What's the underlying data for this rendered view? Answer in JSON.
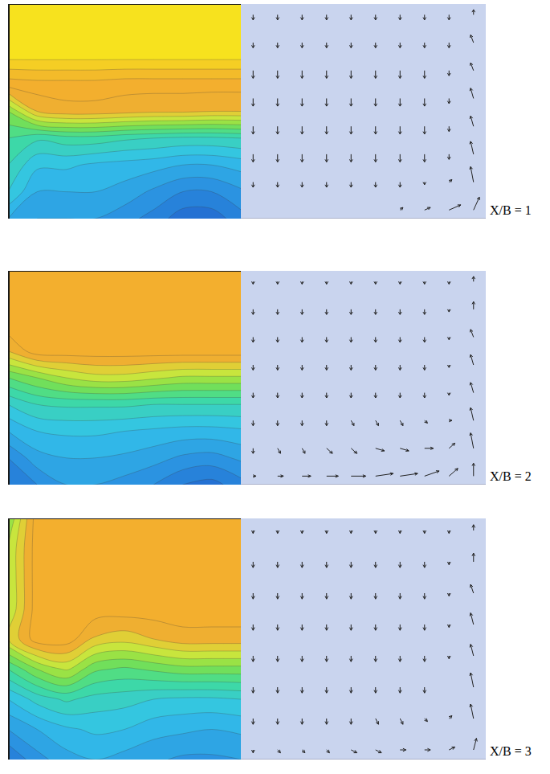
{
  "chart_data": [
    {
      "type": "contour",
      "x": [
        0,
        0.125,
        0.25,
        0.375,
        0.5,
        0.625,
        0.75,
        0.875,
        1
      ],
      "y": [
        0,
        0.125,
        0.25,
        0.375,
        0.5,
        0.625,
        0.75,
        0.875,
        1
      ],
      "z": [
        [
          3,
          2.5,
          2.5,
          2.5,
          2.2,
          1.8,
          1.2,
          1.2,
          1.8
        ],
        [
          4,
          3,
          3,
          3,
          2.8,
          2.4,
          2,
          2,
          2.4
        ],
        [
          4.5,
          3.6,
          3.6,
          3.4,
          3.3,
          3.2,
          3,
          3,
          3.2
        ],
        [
          5,
          4.6,
          4.8,
          4.8,
          4.6,
          4.5,
          4.4,
          4.4,
          4.5
        ],
        [
          6,
          7.5,
          7.8,
          7.8,
          7.7,
          7.6,
          7.6,
          7.5,
          7.5
        ],
        [
          8.2,
          8.3,
          8.3,
          8.3,
          8.2,
          8.2,
          8.2,
          8.2,
          8.2
        ],
        [
          9.6,
          9.6,
          9.6,
          9.6,
          9.6,
          9.6,
          9.6,
          9.6,
          9.6
        ],
        [
          9.6,
          9.6,
          9.6,
          9.6,
          9.6,
          9.6,
          9.6,
          9.6,
          9.6
        ],
        [
          9.5,
          9.6,
          9.6,
          9.6,
          9.6,
          9.6,
          9.6,
          9.6,
          9.6
        ]
      ],
      "zlim": [
        0,
        10
      ],
      "xlim": [
        0,
        1
      ],
      "ylim": [
        0,
        1
      ],
      "tick_labels": false
    },
    {
      "type": "vector",
      "title": "X/B = 1",
      "x": [
        0.05,
        0.15,
        0.25,
        0.35,
        0.45,
        0.55,
        0.65,
        0.75,
        0.85,
        0.95
      ],
      "y": [
        0.04,
        0.17,
        0.3,
        0.43,
        0.56,
        0.69,
        0.82,
        0.95
      ],
      "u": [
        [
          0,
          0,
          0,
          0,
          0,
          0,
          1,
          2,
          4,
          2
        ],
        [
          0,
          0,
          0,
          0,
          0,
          0,
          0,
          0,
          1,
          -1
        ],
        [
          0,
          0,
          0,
          0,
          0,
          0,
          0,
          0,
          0,
          -1
        ],
        [
          0,
          0,
          0,
          0,
          0,
          0,
          0,
          0,
          0,
          -1
        ],
        [
          0,
          0,
          0,
          0,
          0,
          0,
          0,
          0,
          0,
          -1
        ],
        [
          0,
          0,
          0,
          0,
          0,
          0,
          0,
          0,
          0,
          -1
        ],
        [
          0,
          0,
          0,
          0,
          0,
          0,
          0,
          0,
          0,
          -1
        ],
        [
          0,
          0,
          0,
          0,
          0,
          0,
          0,
          0,
          0,
          0
        ]
      ],
      "v": [
        [
          0,
          0,
          0,
          0,
          0,
          0,
          1,
          1,
          2,
          5
        ],
        [
          -2,
          -2,
          -2,
          -2,
          -2,
          -2,
          -2,
          -1,
          1,
          6
        ],
        [
          -3,
          -3,
          -3,
          -3,
          -3,
          -3,
          -3,
          -3,
          -2,
          5
        ],
        [
          -3,
          -3,
          -3,
          -3,
          -3,
          -3,
          -3,
          -3,
          -2,
          4
        ],
        [
          -3,
          -3,
          -3,
          -3,
          -3,
          -3,
          -3,
          -3,
          -2,
          4
        ],
        [
          -3,
          -3,
          -3,
          -3,
          -3,
          -3,
          -3,
          -3,
          -2,
          3
        ],
        [
          -2,
          -2,
          -2,
          -2,
          -2,
          -2,
          -2,
          -2,
          -2,
          3
        ],
        [
          -2,
          -2,
          -2,
          -2,
          -2,
          -2,
          -2,
          -2,
          -2,
          2
        ]
      ],
      "xlim": [
        0,
        1
      ],
      "ylim": [
        0,
        1
      ],
      "tick_labels": false
    },
    {
      "type": "contour",
      "x": [
        0,
        0.125,
        0.25,
        0.375,
        0.5,
        0.625,
        0.75,
        0.875,
        1
      ],
      "y": [
        0,
        0.125,
        0.25,
        0.375,
        0.5,
        0.625,
        0.75,
        0.875,
        1
      ],
      "z": [
        [
          1.5,
          2,
          2.5,
          2.5,
          2.3,
          2,
          1.5,
          1.3,
          1.8
        ],
        [
          2,
          2.8,
          3,
          3,
          2.9,
          2.7,
          2.4,
          2.3,
          2.6
        ],
        [
          3,
          3.5,
          3.6,
          3.6,
          3.5,
          3.4,
          3.3,
          3.3,
          3.4
        ],
        [
          4,
          4.5,
          4.6,
          4.6,
          4.6,
          4.5,
          4.5,
          4.5,
          4.5
        ],
        [
          5.5,
          6,
          6.5,
          6.8,
          6.8,
          6.6,
          6.4,
          6.4,
          6.4
        ],
        [
          7.5,
          8.3,
          8.3,
          8.3,
          8.3,
          8.3,
          8.3,
          8.3,
          8.3
        ],
        [
          8.3,
          8.3,
          8.3,
          8.3,
          8.3,
          8.3,
          8.3,
          8.3,
          8.3
        ],
        [
          8.3,
          8.3,
          8.3,
          8.3,
          8.3,
          8.3,
          8.3,
          8.3,
          8.3
        ],
        [
          8.3,
          8.3,
          8.3,
          8.3,
          8.3,
          8.3,
          8.3,
          8.3,
          8.3
        ]
      ],
      "zlim": [
        0,
        10
      ],
      "xlim": [
        0,
        1
      ],
      "ylim": [
        0,
        1
      ],
      "tick_labels": false
    },
    {
      "type": "vector",
      "title": "X/B = 2",
      "x": [
        0.05,
        0.15,
        0.25,
        0.35,
        0.45,
        0.55,
        0.65,
        0.75,
        0.85,
        0.95
      ],
      "y": [
        0.04,
        0.17,
        0.3,
        0.43,
        0.56,
        0.69,
        0.82,
        0.95
      ],
      "u": [
        [
          1,
          2,
          3,
          4,
          5,
          6,
          6,
          5,
          3,
          0
        ],
        [
          0,
          1,
          1,
          2,
          2,
          3,
          3,
          3,
          2,
          -1
        ],
        [
          0,
          0,
          0,
          0,
          1,
          1,
          1,
          1,
          1,
          -1
        ],
        [
          0,
          0,
          0,
          0,
          0,
          0,
          0,
          0,
          0,
          -1
        ],
        [
          0,
          0,
          0,
          0,
          0,
          0,
          0,
          0,
          0,
          -1
        ],
        [
          0,
          0,
          0,
          0,
          0,
          0,
          0,
          0,
          0,
          -1
        ],
        [
          0,
          0,
          0,
          0,
          0,
          0,
          0,
          0,
          0,
          0
        ],
        [
          0,
          0,
          0,
          0,
          0,
          0,
          0,
          0,
          0,
          0
        ]
      ],
      "v": [
        [
          0,
          0,
          0,
          0,
          0,
          1,
          1,
          2,
          3,
          5
        ],
        [
          -2,
          -2,
          -2,
          -2,
          -2,
          -1,
          -1,
          0,
          2,
          6
        ],
        [
          -2,
          -2,
          -2,
          -2,
          -2,
          -2,
          -2,
          -1,
          0,
          5
        ],
        [
          -2,
          -2,
          -2,
          -2,
          -2,
          -2,
          -2,
          -2,
          -1,
          4
        ],
        [
          -2,
          -2,
          -2,
          -2,
          -2,
          -2,
          -2,
          -2,
          -1,
          4
        ],
        [
          -2,
          -2,
          -2,
          -2,
          -2,
          -2,
          -2,
          -2,
          -1,
          3
        ],
        [
          -2,
          -2,
          -2,
          -2,
          -2,
          -2,
          -2,
          -2,
          -1,
          3
        ],
        [
          -1,
          -1,
          -1,
          -1,
          -1,
          -1,
          -1,
          -1,
          -1,
          2
        ]
      ],
      "xlim": [
        0,
        1
      ],
      "ylim": [
        0,
        1
      ],
      "tick_labels": false
    },
    {
      "type": "contour",
      "x": [
        0,
        0.125,
        0.25,
        0.375,
        0.5,
        0.625,
        0.75,
        0.875,
        1
      ],
      "y": [
        0,
        0.125,
        0.25,
        0.375,
        0.5,
        0.625,
        0.75,
        0.875,
        1
      ],
      "z": [
        [
          1.5,
          2.3,
          2.8,
          3,
          2.8,
          2.6,
          2.4,
          2.4,
          2.5
        ],
        [
          2.5,
          3,
          3.4,
          3.6,
          3.5,
          3.2,
          3.1,
          3,
          3.1
        ],
        [
          3.5,
          4.2,
          4.6,
          4.3,
          4.2,
          4,
          3.9,
          3.9,
          4
        ],
        [
          5,
          6,
          6.6,
          5.6,
          5.4,
          5.6,
          5.8,
          5.8,
          5.8
        ],
        [
          7,
          8.3,
          8.3,
          7.4,
          7.2,
          7.5,
          7.8,
          7.8,
          7.8
        ],
        [
          6.5,
          8.3,
          8.3,
          8.3,
          8.3,
          8.3,
          8.3,
          8.3,
          8.3
        ],
        [
          6.5,
          8.3,
          8.3,
          8.3,
          8.3,
          8.3,
          8.3,
          8.3,
          8.3
        ],
        [
          6.5,
          8.3,
          8.3,
          8.3,
          8.3,
          8.3,
          8.3,
          8.3,
          8.3
        ],
        [
          6,
          8.3,
          8.3,
          8.3,
          8.3,
          8.3,
          8.3,
          8.3,
          8.3
        ]
      ],
      "zlim": [
        0,
        10
      ],
      "xlim": [
        0,
        1
      ],
      "ylim": [
        0,
        1
      ],
      "tick_labels": false
    },
    {
      "type": "vector",
      "title": "X/B = 3",
      "x": [
        0.05,
        0.15,
        0.25,
        0.35,
        0.45,
        0.55,
        0.65,
        0.75,
        0.85,
        0.95
      ],
      "y": [
        0.04,
        0.17,
        0.3,
        0.43,
        0.56,
        0.69,
        0.82,
        0.95
      ],
      "u": [
        [
          0,
          1,
          1,
          1,
          2,
          2,
          2,
          2,
          2,
          1
        ],
        [
          0,
          0,
          0,
          0,
          0,
          1,
          1,
          1,
          1,
          -1
        ],
        [
          0,
          0,
          0,
          0,
          0,
          0,
          0,
          0,
          0,
          -1
        ],
        [
          0,
          0,
          0,
          0,
          0,
          0,
          0,
          0,
          0,
          -1
        ],
        [
          0,
          0,
          0,
          0,
          0,
          0,
          0,
          0,
          0,
          -1
        ],
        [
          0,
          0,
          0,
          0,
          0,
          0,
          0,
          0,
          0,
          -1
        ],
        [
          0,
          0,
          0,
          0,
          0,
          0,
          0,
          0,
          0,
          0
        ],
        [
          0,
          0,
          0,
          0,
          0,
          0,
          0,
          0,
          0,
          0
        ]
      ],
      "v": [
        [
          -1,
          -1,
          -1,
          -1,
          -1,
          -1,
          0,
          0,
          1,
          4
        ],
        [
          -2,
          -2,
          -2,
          -2,
          -2,
          -2,
          -2,
          -1,
          1,
          5
        ],
        [
          -2,
          -2,
          -2,
          -2,
          -2,
          -2,
          -2,
          -2,
          0,
          5
        ],
        [
          -2,
          -2,
          -2,
          -2,
          -2,
          -2,
          -2,
          -2,
          -1,
          4
        ],
        [
          -2,
          -2,
          -2,
          -2,
          -2,
          -2,
          -2,
          -2,
          -1,
          4
        ],
        [
          -2,
          -2,
          -2,
          -2,
          -2,
          -2,
          -2,
          -2,
          -1,
          3
        ],
        [
          -2,
          -2,
          -2,
          -2,
          -2,
          -2,
          -2,
          -2,
          -1,
          3
        ],
        [
          -1,
          -1,
          -1,
          -1,
          -1,
          -1,
          -1,
          -1,
          -1,
          2
        ]
      ],
      "xlim": [
        0,
        1
      ],
      "ylim": [
        0,
        1
      ],
      "tick_labels": false
    }
  ]
}
